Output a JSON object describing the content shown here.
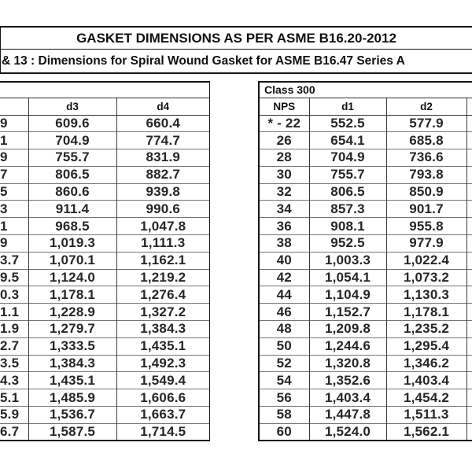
{
  "header": {
    "title": "GASKET DIMENSIONS AS PER ASME B16.20-2012",
    "subtitle": "& 13 : Dimensions for Spiral Wound Gasket for ASME B16.47 Series A"
  },
  "left_table": {
    "class_label": "",
    "headers": [
      "",
      "d3",
      "d4"
    ],
    "rows": [
      [
        "9",
        "609.6",
        "660.4"
      ],
      [
        "1",
        "704.9",
        "774.7"
      ],
      [
        "9",
        "755.7",
        "831.9"
      ],
      [
        "7",
        "806.5",
        "882.7"
      ],
      [
        "5",
        "860.6",
        "939.8"
      ],
      [
        "3",
        "911.4",
        "990.6"
      ],
      [
        "1",
        "968.5",
        "1,047.8"
      ],
      [
        "9",
        "1,019.3",
        "1,111.3"
      ],
      [
        "3.7",
        "1,070.1",
        "1,162.1"
      ],
      [
        "9.5",
        "1,124.0",
        "1,219.2"
      ],
      [
        "0.3",
        "1,178.1",
        "1,276.4"
      ],
      [
        "1.1",
        "1,228.9",
        "1,327.2"
      ],
      [
        "1.9",
        "1,279.7",
        "1,384.3"
      ],
      [
        "2.7",
        "1,333.5",
        "1,435.1"
      ],
      [
        "3.5",
        "1,384.3",
        "1,492.3"
      ],
      [
        "4.3",
        "1,435.1",
        "1,549.4"
      ],
      [
        "5.1",
        "1,485.9",
        "1,606.6"
      ],
      [
        "5.9",
        "1,536.7",
        "1,663.7"
      ],
      [
        "6.7",
        "1,587.5",
        "1,714.5"
      ]
    ]
  },
  "right_table": {
    "class_label": "Class 300",
    "headers": [
      "NPS",
      "d1",
      "d2",
      ""
    ],
    "rows": [
      [
        "* - 22",
        "552.5",
        "577.9",
        ""
      ],
      [
        "26",
        "654.1",
        "685.8",
        ""
      ],
      [
        "28",
        "704.9",
        "736.6",
        ""
      ],
      [
        "30",
        "755.7",
        "793.8",
        ""
      ],
      [
        "32",
        "806.5",
        "850.9",
        ""
      ],
      [
        "34",
        "857.3",
        "901.7",
        ""
      ],
      [
        "36",
        "908.1",
        "955.8",
        ""
      ],
      [
        "38",
        "952.5",
        "977.9",
        ""
      ],
      [
        "40",
        "1,003.3",
        "1,022.4",
        ""
      ],
      [
        "42",
        "1,054.1",
        "1,073.2",
        ""
      ],
      [
        "44",
        "1,104.9",
        "1,130.3",
        ""
      ],
      [
        "46",
        "1,152.7",
        "1,178.1",
        ""
      ],
      [
        "48",
        "1,209.8",
        "1,235.2",
        ""
      ],
      [
        "50",
        "1,244.6",
        "1,295.4",
        ""
      ],
      [
        "52",
        "1,320.8",
        "1,346.2",
        ""
      ],
      [
        "54",
        "1,352.6",
        "1,403.4",
        ""
      ],
      [
        "56",
        "1,403.4",
        "1,454.2",
        ""
      ],
      [
        "58",
        "1,447.8",
        "1,511.3",
        ""
      ],
      [
        "60",
        "1,524.0",
        "1,562.1",
        ""
      ]
    ]
  }
}
